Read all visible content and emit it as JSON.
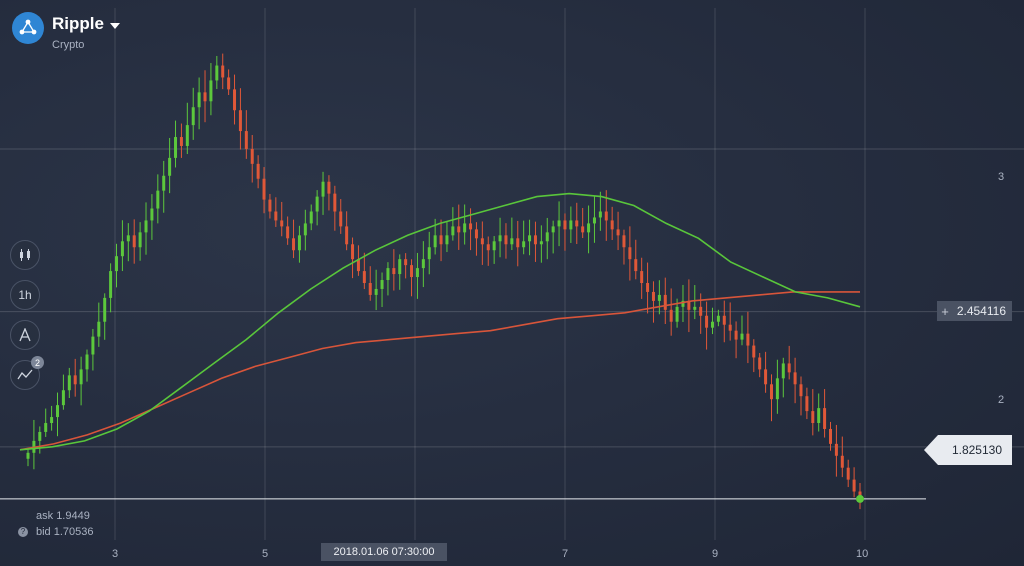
{
  "asset": {
    "name": "Ripple",
    "category": "Crypto",
    "icon": "ripple-logo"
  },
  "tools": [
    {
      "name": "candles-chart-type-button",
      "icon": "candles-icon"
    },
    {
      "name": "timeframe-button",
      "label": "1h"
    },
    {
      "name": "drawing-tools-button",
      "icon": "drawing-icon"
    },
    {
      "name": "indicators-button",
      "icon": "indicators-icon",
      "badge": "2"
    }
  ],
  "price_axis": {
    "labels": [
      "3",
      "2"
    ]
  },
  "time_axis": {
    "labels": [
      "3",
      "5",
      "7",
      "9",
      "10"
    ],
    "crosshair_time": "2018.01.06 07:30:00"
  },
  "crosshair_price": "2.454116",
  "current_price": "1.825130",
  "quote": {
    "ask_label": "ask",
    "ask_value": "1.9449",
    "bid_label": "bid",
    "bid_value": "1.70536"
  },
  "colors": {
    "up": "#5cc83c",
    "down": "#e05838",
    "ma_fast": "#59c63b",
    "ma_slow": "#d8553a"
  },
  "chart_data": {
    "type": "line",
    "y_range": [
      1.6,
      3.5
    ],
    "series": [
      {
        "type": "candlestick",
        "close": [
          1.98,
          2.02,
          2.05,
          2.08,
          2.1,
          2.14,
          2.19,
          2.24,
          2.21,
          2.26,
          2.31,
          2.37,
          2.42,
          2.5,
          2.59,
          2.64,
          2.69,
          2.71,
          2.67,
          2.72,
          2.76,
          2.8,
          2.86,
          2.91,
          2.97,
          3.04,
          3.01,
          3.08,
          3.14,
          3.19,
          3.16,
          3.23,
          3.28,
          3.24,
          3.2,
          3.13,
          3.06,
          3,
          2.95,
          2.9,
          2.83,
          2.79,
          2.76,
          2.74,
          2.7,
          2.66,
          2.71,
          2.75,
          2.79,
          2.84,
          2.89,
          2.85,
          2.79,
          2.74,
          2.68,
          2.63,
          2.59,
          2.55,
          2.51,
          2.53,
          2.56,
          2.6,
          2.58,
          2.63,
          2.61,
          2.57,
          2.6,
          2.63,
          2.67,
          2.71,
          2.68,
          2.71,
          2.74,
          2.72,
          2.75,
          2.73,
          2.7,
          2.68,
          2.66,
          2.69,
          2.71,
          2.68,
          2.7,
          2.67,
          2.69,
          2.71,
          2.68,
          2.69,
          2.72,
          2.74,
          2.76,
          2.73,
          2.76,
          2.74,
          2.72,
          2.75,
          2.77,
          2.79,
          2.76,
          2.73,
          2.71,
          2.67,
          2.63,
          2.59,
          2.55,
          2.52,
          2.49,
          2.51,
          2.46,
          2.42,
          2.47,
          2.49,
          2.46,
          2.47,
          2.44,
          2.4,
          2.42,
          2.44,
          2.41,
          2.39,
          2.36,
          2.38,
          2.34,
          2.3,
          2.26,
          2.21,
          2.16,
          2.23,
          2.28,
          2.25,
          2.21,
          2.17,
          2.12,
          2.08,
          2.13,
          2.06,
          2.01,
          1.97,
          1.93,
          1.89,
          1.85,
          1.83
        ]
      },
      {
        "name": "MA fast",
        "values": [
          1.99,
          2.0,
          2.02,
          2.06,
          2.12,
          2.2,
          2.28,
          2.36,
          2.45,
          2.53,
          2.6,
          2.66,
          2.71,
          2.75,
          2.78,
          2.81,
          2.84,
          2.85,
          2.84,
          2.81,
          2.75,
          2.7,
          2.62,
          2.57,
          2.52,
          2.5,
          2.47
        ]
      },
      {
        "name": "MA slow",
        "values": [
          1.99,
          2.01,
          2.04,
          2.08,
          2.13,
          2.18,
          2.23,
          2.27,
          2.3,
          2.33,
          2.35,
          2.36,
          2.37,
          2.38,
          2.39,
          2.41,
          2.43,
          2.44,
          2.45,
          2.47,
          2.49,
          2.5,
          2.51,
          2.52,
          2.52,
          2.52
        ]
      }
    ]
  }
}
